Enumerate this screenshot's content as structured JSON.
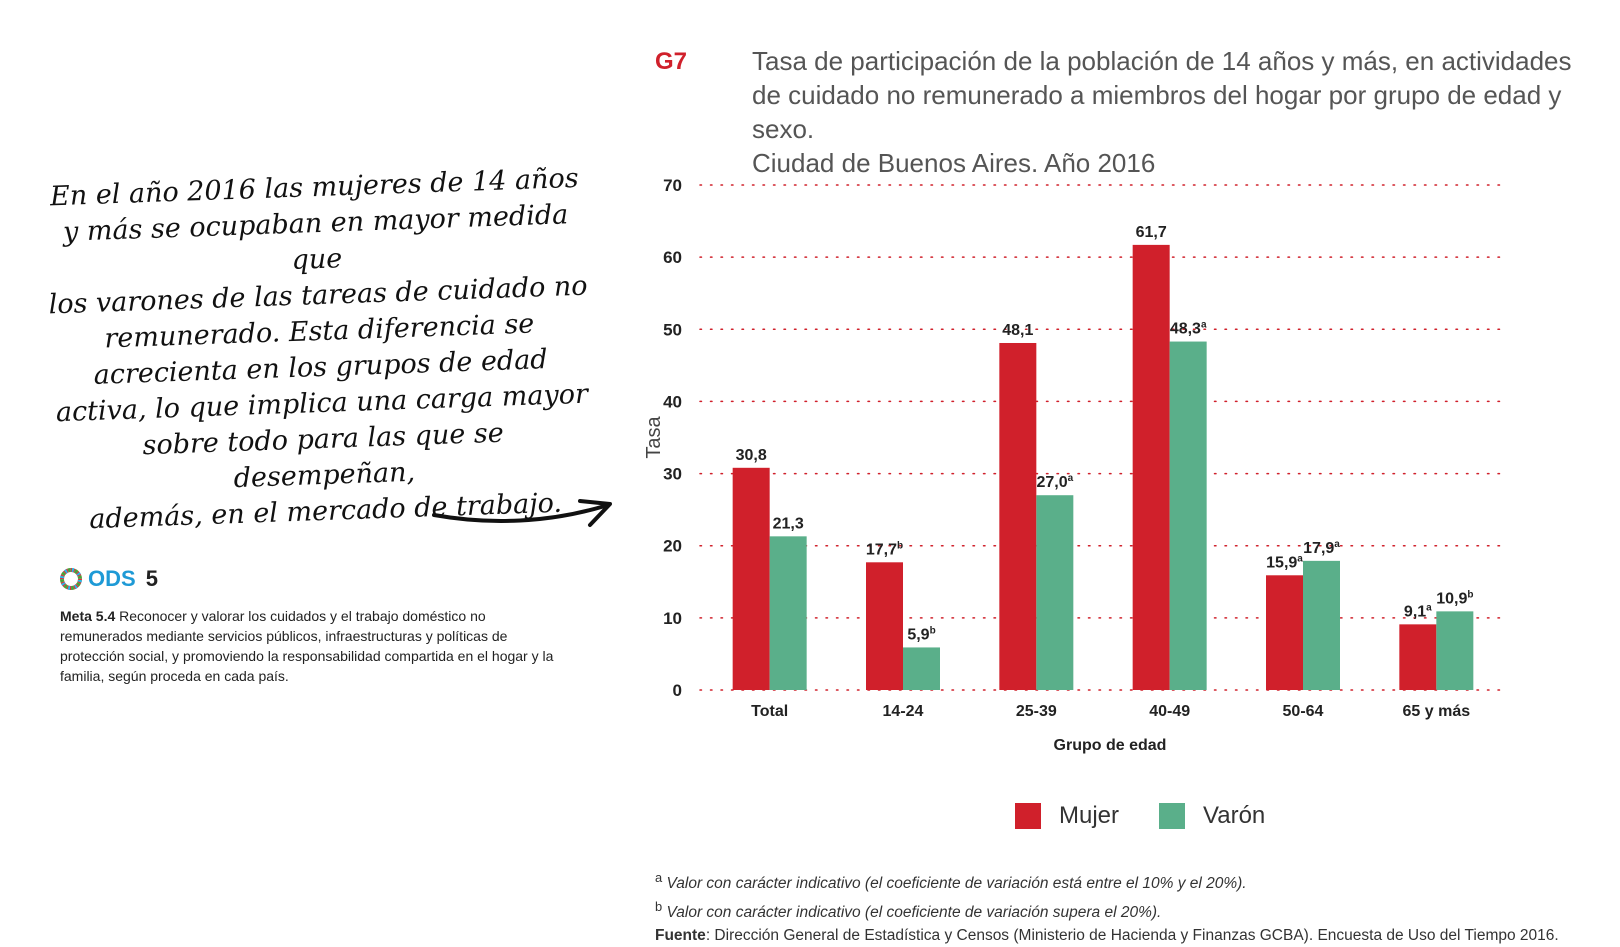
{
  "callout": {
    "lines": [
      "En el año 2016 las mujeres de 14 años",
      "y más se ocupaban en mayor medida que",
      "los varones de las tareas de cuidado no",
      "remunerado. Esta diferencia se",
      "acrecienta en los grupos de edad",
      "activa, lo que implica una carga mayor",
      "sobre todo para las que se desempeñan,",
      "además, en el mercado de trabajo."
    ]
  },
  "ods": {
    "label": "ODS",
    "number": "5",
    "meta_label": "Meta 5.4",
    "meta_text": "Reconocer y valorar los cuidados y el trabajo doméstico no remunerados mediante servicios públicos, infraestructuras y políticas de protección social, y promoviendo la responsabilidad compartida en el hogar y la familia, según proceda en cada país."
  },
  "figure": {
    "code": "G7",
    "title_lines": [
      "Tasa de participación de la población de 14 años y más, en actividades",
      "de cuidado no remunerado a miembros del hogar por grupo de edad y sexo.",
      "Ciudad de Buenos Aires. Año 2016"
    ]
  },
  "chart_data": {
    "type": "bar",
    "categories": [
      "Total",
      "14-24",
      "25-39",
      "40-49",
      "50-64",
      "65 y más"
    ],
    "series": [
      {
        "name": "Mujer",
        "color": "#d0202b",
        "values": [
          30.8,
          17.7,
          48.1,
          61.7,
          15.9,
          9.1
        ],
        "labels": [
          "30,8",
          "17,7",
          "48,1",
          "61,7",
          "15,9",
          "9,1"
        ],
        "notes": [
          "",
          "b",
          "",
          "",
          "a",
          "a"
        ]
      },
      {
        "name": "Varón",
        "color": "#5aaf8a",
        "values": [
          21.3,
          5.9,
          27.0,
          48.3,
          17.9,
          10.9
        ],
        "labels": [
          "21,3",
          "5,9",
          "27,0",
          "48,3",
          "17,9",
          "10,9"
        ],
        "notes": [
          "",
          "b",
          "a",
          "a",
          "a",
          "b"
        ]
      }
    ],
    "xlabel": "Grupo de edad",
    "ylabel": "Tasa",
    "ylim": [
      0,
      70
    ],
    "yticks": [
      0,
      10,
      20,
      30,
      40,
      50,
      60,
      70
    ],
    "grid": "dotted",
    "gridColor": "#d0202b",
    "legend": "bottom-center"
  },
  "notes": {
    "note_a": "Valor con carácter indicativo (el coeficiente de variación está entre el 10% y el 20%).",
    "note_b": "Valor con carácter indicativo (el coeficiente de variación supera el 20%).",
    "source_label": "Fuente",
    "source_text": ": Dirección General de Estadística y Censos (Ministerio de Hacienda y Finanzas GCBA). Encuesta de Uso del Tiempo 2016."
  }
}
